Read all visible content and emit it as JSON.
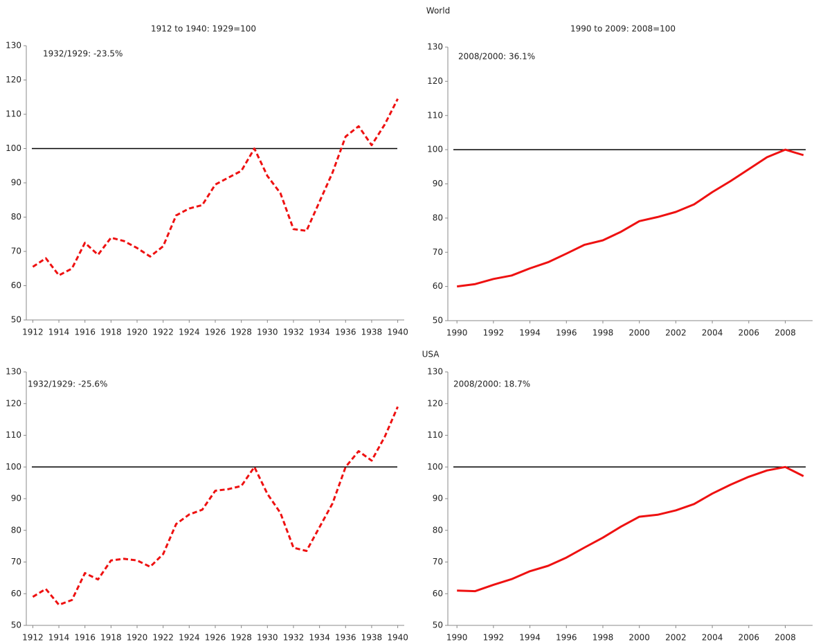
{
  "chart_data": [
    {
      "type": "line",
      "title": "1912 to 1940: 1929=100",
      "annotation": "1932/1929: -23.5%",
      "x": [
        1912,
        1913,
        1914,
        1915,
        1916,
        1917,
        1918,
        1919,
        1920,
        1921,
        1922,
        1923,
        1924,
        1925,
        1926,
        1927,
        1928,
        1929,
        1930,
        1931,
        1932,
        1933,
        1934,
        1935,
        1936,
        1937,
        1938,
        1939,
        1940
      ],
      "series": [
        {
          "color": "#ee1111",
          "line_style": "dashed",
          "values": [
            65.5,
            68,
            63,
            65,
            72.5,
            69,
            74,
            73,
            71,
            68.5,
            71.5,
            80.5,
            82.5,
            83.5,
            89.5,
            91.5,
            93.5,
            100,
            92,
            87,
            76.5,
            76,
            84.5,
            93,
            103.5,
            106.5,
            101,
            107,
            114.5
          ]
        }
      ],
      "reference_line": 100,
      "xlim": [
        1911.5,
        1940.5
      ],
      "ylim": [
        50,
        130
      ],
      "xticks": [
        1912,
        1914,
        1916,
        1918,
        1920,
        1922,
        1924,
        1926,
        1928,
        1930,
        1932,
        1934,
        1936,
        1938,
        1940
      ],
      "yticks": [
        50,
        60,
        70,
        80,
        90,
        100,
        110,
        120,
        130
      ]
    },
    {
      "type": "line",
      "suptitle": "World",
      "title": "1990 to 2009: 2008=100",
      "annotation": "2008/2000: 36.1%",
      "x": [
        1990,
        1991,
        1992,
        1993,
        1994,
        1995,
        1996,
        1997,
        1998,
        1999,
        2000,
        2001,
        2002,
        2003,
        2004,
        2005,
        2006,
        2007,
        2008,
        2009
      ],
      "series": [
        {
          "color": "#ee1111",
          "line_style": "solid",
          "values": [
            60,
            60.7,
            62.2,
            63.2,
            65.3,
            67.1,
            69.6,
            72.2,
            73.5,
            76,
            79.1,
            80.3,
            81.8,
            84,
            87.6,
            90.8,
            94.3,
            97.8,
            100,
            98.4
          ]
        }
      ],
      "reference_line": 100,
      "xlim": [
        1989.5,
        2009.5
      ],
      "ylim": [
        50,
        130
      ],
      "xticks": [
        1990,
        1992,
        1994,
        1996,
        1998,
        2000,
        2002,
        2004,
        2006,
        2008
      ],
      "yticks": [
        50,
        60,
        70,
        80,
        90,
        100,
        110,
        120,
        130
      ]
    },
    {
      "type": "line",
      "annotation": "1932/1929: -25.6%",
      "x": [
        1912,
        1913,
        1914,
        1915,
        1916,
        1917,
        1918,
        1919,
        1920,
        1921,
        1922,
        1923,
        1924,
        1925,
        1926,
        1927,
        1928,
        1929,
        1930,
        1931,
        1932,
        1933,
        1934,
        1935,
        1936,
        1937,
        1938,
        1939,
        1940
      ],
      "series": [
        {
          "color": "#ee1111",
          "line_style": "dashed",
          "values": [
            59,
            61.5,
            56.5,
            58,
            66.5,
            64.5,
            70.5,
            71,
            70.5,
            68.5,
            72.5,
            82,
            85,
            86.5,
            92.5,
            93,
            94,
            100,
            91.5,
            85.5,
            74.5,
            73.5,
            81,
            88.5,
            100,
            105,
            102,
            109.5,
            119
          ]
        }
      ],
      "reference_line": 100,
      "xlim": [
        1911.5,
        1940.5
      ],
      "ylim": [
        50,
        130
      ],
      "xticks": [
        1912,
        1914,
        1916,
        1918,
        1920,
        1922,
        1924,
        1926,
        1928,
        1930,
        1932,
        1934,
        1936,
        1938,
        1940
      ],
      "yticks": [
        50,
        60,
        70,
        80,
        90,
        100,
        110,
        120,
        130
      ]
    },
    {
      "type": "line",
      "suptitle": "USA",
      "annotation": "2008/2000: 18.7%",
      "x": [
        1990,
        1991,
        1992,
        1993,
        1994,
        1995,
        1996,
        1997,
        1998,
        1999,
        2000,
        2001,
        2002,
        2003,
        2004,
        2005,
        2006,
        2007,
        2008,
        2009
      ],
      "series": [
        {
          "color": "#ee1111",
          "line_style": "solid",
          "values": [
            61,
            60.8,
            62.8,
            64.6,
            67.1,
            68.8,
            71.4,
            74.6,
            77.7,
            81.2,
            84.3,
            84.9,
            86.3,
            88.3,
            91.6,
            94.4,
            96.9,
            98.9,
            100,
            97.1
          ]
        }
      ],
      "reference_line": 100,
      "xlim": [
        1989.5,
        2009.5
      ],
      "ylim": [
        50,
        130
      ],
      "xticks": [
        1990,
        1992,
        1994,
        1996,
        1998,
        2000,
        2002,
        2004,
        2006,
        2008
      ],
      "yticks": [
        50,
        60,
        70,
        80,
        90,
        100,
        110,
        120,
        130
      ]
    }
  ]
}
